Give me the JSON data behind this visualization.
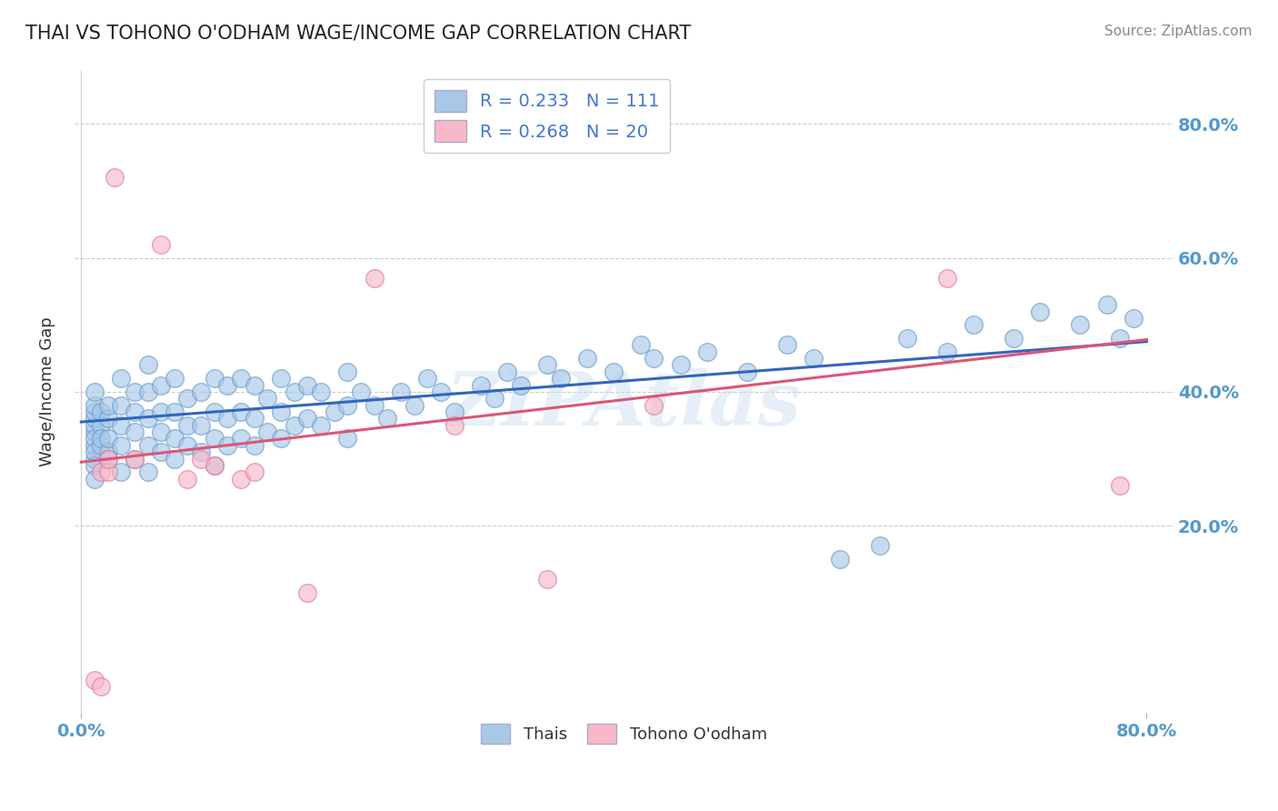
{
  "title": "THAI VS TOHONO O'ODHAM WAGE/INCOME GAP CORRELATION CHART",
  "source": "Source: ZipAtlas.com",
  "ylabel": "Wage/Income Gap",
  "ytick_labels": [
    "20.0%",
    "40.0%",
    "60.0%",
    "80.0%"
  ],
  "ytick_values": [
    0.2,
    0.4,
    0.6,
    0.8
  ],
  "xlim": [
    -0.005,
    0.82
  ],
  "ylim": [
    -0.08,
    0.88
  ],
  "watermark": "ZIPAtlas",
  "thai_color": "#a8c8e8",
  "thai_edge": "#6699cc",
  "tohono_color": "#f8b8c8",
  "tohono_edge": "#dd7799",
  "trend_thai_color": "#3366bb",
  "trend_tohono_color": "#dd5577",
  "thai_R": 0.233,
  "tohono_R": 0.268,
  "thai_N": 111,
  "tohono_N": 20,
  "thai_trend_x0": 0.0,
  "thai_trend_y0": 0.355,
  "thai_trend_x1": 0.8,
  "thai_trend_y1": 0.475,
  "tohono_trend_x0": 0.0,
  "tohono_trend_y0": 0.295,
  "tohono_trend_x1": 0.8,
  "tohono_trend_y1": 0.478,
  "thai_points_x": [
    0.01,
    0.01,
    0.01,
    0.01,
    0.01,
    0.01,
    0.01,
    0.01,
    0.01,
    0.01,
    0.01,
    0.01,
    0.015,
    0.015,
    0.015,
    0.015,
    0.02,
    0.02,
    0.02,
    0.02,
    0.02,
    0.03,
    0.03,
    0.03,
    0.03,
    0.03,
    0.04,
    0.04,
    0.04,
    0.04,
    0.05,
    0.05,
    0.05,
    0.05,
    0.05,
    0.06,
    0.06,
    0.06,
    0.06,
    0.07,
    0.07,
    0.07,
    0.07,
    0.08,
    0.08,
    0.08,
    0.09,
    0.09,
    0.09,
    0.1,
    0.1,
    0.1,
    0.1,
    0.11,
    0.11,
    0.11,
    0.12,
    0.12,
    0.12,
    0.13,
    0.13,
    0.13,
    0.14,
    0.14,
    0.15,
    0.15,
    0.15,
    0.16,
    0.16,
    0.17,
    0.17,
    0.18,
    0.18,
    0.19,
    0.2,
    0.2,
    0.2,
    0.21,
    0.22,
    0.23,
    0.24,
    0.25,
    0.26,
    0.27,
    0.28,
    0.3,
    0.31,
    0.32,
    0.33,
    0.35,
    0.36,
    0.38,
    0.4,
    0.42,
    0.43,
    0.45,
    0.47,
    0.5,
    0.53,
    0.55,
    0.57,
    0.6,
    0.62,
    0.65,
    0.67,
    0.7,
    0.72,
    0.75,
    0.77,
    0.78,
    0.79
  ],
  "thai_points_y": [
    0.3,
    0.32,
    0.34,
    0.35,
    0.36,
    0.37,
    0.33,
    0.31,
    0.29,
    0.27,
    0.38,
    0.4,
    0.32,
    0.35,
    0.37,
    0.33,
    0.31,
    0.33,
    0.36,
    0.3,
    0.38,
    0.28,
    0.32,
    0.35,
    0.38,
    0.42,
    0.3,
    0.34,
    0.37,
    0.4,
    0.28,
    0.32,
    0.36,
    0.4,
    0.44,
    0.31,
    0.34,
    0.37,
    0.41,
    0.3,
    0.33,
    0.37,
    0.42,
    0.32,
    0.35,
    0.39,
    0.31,
    0.35,
    0.4,
    0.29,
    0.33,
    0.37,
    0.42,
    0.32,
    0.36,
    0.41,
    0.33,
    0.37,
    0.42,
    0.32,
    0.36,
    0.41,
    0.34,
    0.39,
    0.33,
    0.37,
    0.42,
    0.35,
    0.4,
    0.36,
    0.41,
    0.35,
    0.4,
    0.37,
    0.33,
    0.38,
    0.43,
    0.4,
    0.38,
    0.36,
    0.4,
    0.38,
    0.42,
    0.4,
    0.37,
    0.41,
    0.39,
    0.43,
    0.41,
    0.44,
    0.42,
    0.45,
    0.43,
    0.47,
    0.45,
    0.44,
    0.46,
    0.43,
    0.47,
    0.45,
    0.15,
    0.17,
    0.48,
    0.46,
    0.5,
    0.48,
    0.52,
    0.5,
    0.53,
    0.48,
    0.51
  ],
  "tohono_points_x": [
    0.01,
    0.015,
    0.015,
    0.02,
    0.02,
    0.025,
    0.04,
    0.06,
    0.08,
    0.09,
    0.1,
    0.12,
    0.13,
    0.17,
    0.22,
    0.28,
    0.35,
    0.43,
    0.65,
    0.78
  ],
  "tohono_points_y": [
    -0.03,
    -0.04,
    0.28,
    0.28,
    0.3,
    0.72,
    0.3,
    0.62,
    0.27,
    0.3,
    0.29,
    0.27,
    0.28,
    0.1,
    0.57,
    0.35,
    0.12,
    0.38,
    0.57,
    0.26
  ]
}
